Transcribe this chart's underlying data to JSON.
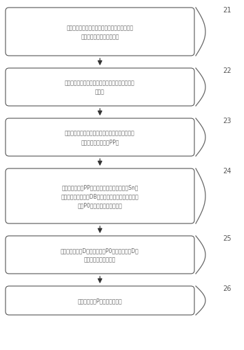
{
  "background_color": "#ffffff",
  "box_fill_color": "#ffffff",
  "box_edge_color": "#555555",
  "arrow_color": "#333333",
  "text_color": "#666666",
  "step_label_color": "#555555",
  "boxes": [
    {
      "id": 1,
      "label": "读取待解码数据；从各项输入数据的编码头数据\n中，解码出各项编码参数；",
      "step": "21"
    },
    {
      "id": 2,
      "label": "根据编码参数中的各项数字摘要，校验数据是否被\n篡改；",
      "step": "22"
    },
    {
      "id": 3,
      "label": "从输入数据中，解码出对应的量子存储编码元素，\n拼装出组合编码数据PP；",
      "step": "23"
    },
    {
      "id": 4,
      "label": "从组合编码数据PP中，依据集成编码随机序码Sn，\n解码出对称加密密钥DB的数据量子编码集合和源数据\n密文P0的数据量子编码集合；",
      "step": "24"
    },
    {
      "id": 5,
      "label": "解码出随机密钥D和源数据密文P0；对随机密钥D、\n源数据密文进行校验；",
      "step": "25"
    },
    {
      "id": 6,
      "label": "解密出源数据P，校验后输出；",
      "step": "26"
    }
  ],
  "fig_width": 3.54,
  "fig_height": 5.1,
  "dpi": 100
}
